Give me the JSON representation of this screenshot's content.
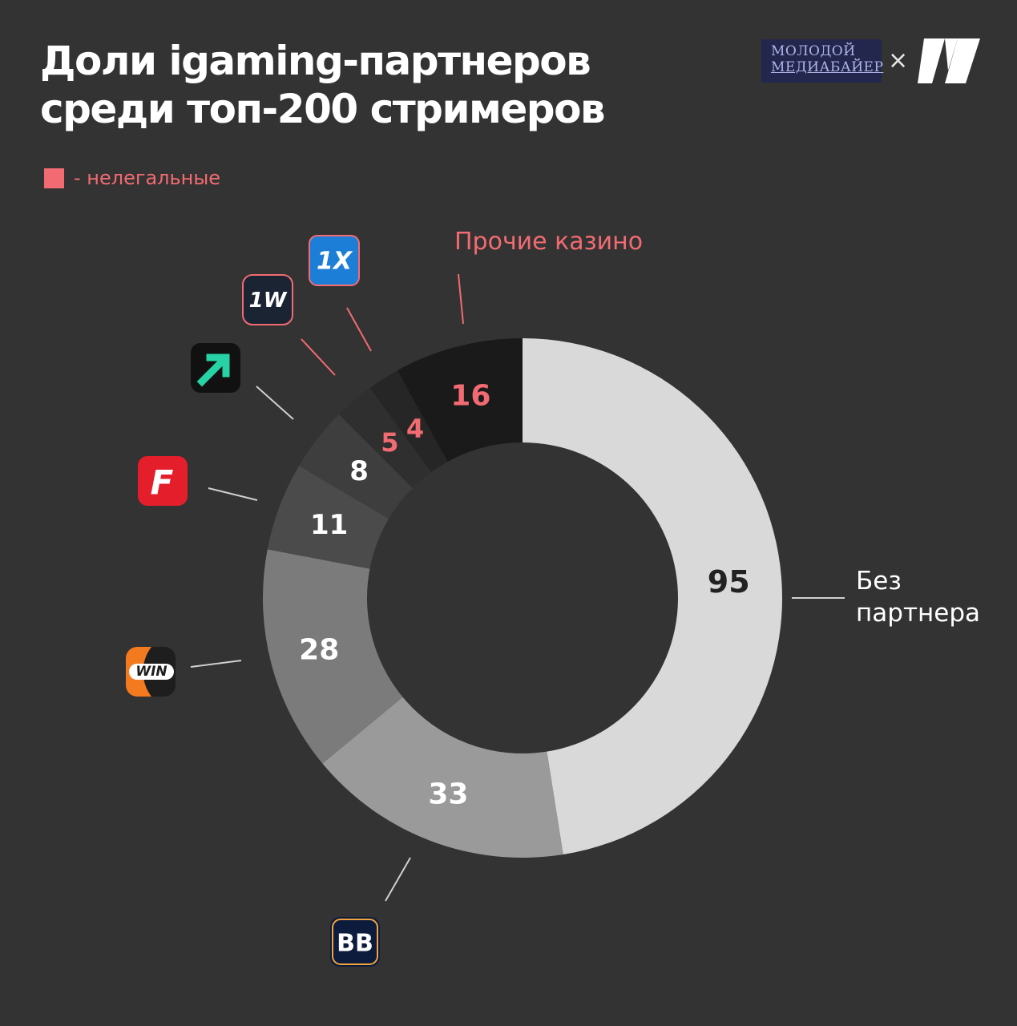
{
  "title": {
    "line1": "Доли igaming-партнеров",
    "line2": "среди топ-200 стримеров"
  },
  "legend": {
    "text": "- нелегальные",
    "color": "#f26b72"
  },
  "brand": {
    "line1": "МОЛОДОЙ",
    "line2": "МЕДИАБАЙЕР",
    "separator": "×"
  },
  "chart_data": {
    "type": "pie",
    "total": 200,
    "slices": [
      {
        "label": "Без партнера",
        "line1": "Без",
        "line2": "партнера",
        "value": 95,
        "color": "#d9d9d9",
        "text_color": "#222222",
        "illegal": false
      },
      {
        "label": "BB",
        "value": 33,
        "color": "#9a9a9a",
        "text_color": "#ffffff",
        "illegal": false,
        "icon": "bb-logo-icon"
      },
      {
        "label": "WIN",
        "value": 28,
        "color": "#7b7b7b",
        "text_color": "#ffffff",
        "illegal": false,
        "icon": "win-logo-icon"
      },
      {
        "label": "F",
        "value": 11,
        "color": "#4b4b4b",
        "text_color": "#ffffff",
        "illegal": false,
        "icon": "f-logo-icon"
      },
      {
        "label": "arrow",
        "value": 8,
        "color": "#3e3e3e",
        "text_color": "#ffffff",
        "illegal": false,
        "icon": "green-arrow-logo-icon"
      },
      {
        "label": "1W",
        "value": 5,
        "color": "#2f2f2f",
        "text_color": "#f26b72",
        "illegal": true,
        "icon": "1w-logo-icon"
      },
      {
        "label": "1X",
        "value": 4,
        "color": "#262626",
        "text_color": "#f26b72",
        "illegal": true,
        "icon": "1x-logo-icon"
      },
      {
        "label": "Прочие казино",
        "value": 16,
        "color": "#1a1a1a",
        "text_color": "#f26b72",
        "illegal": true
      }
    ]
  }
}
